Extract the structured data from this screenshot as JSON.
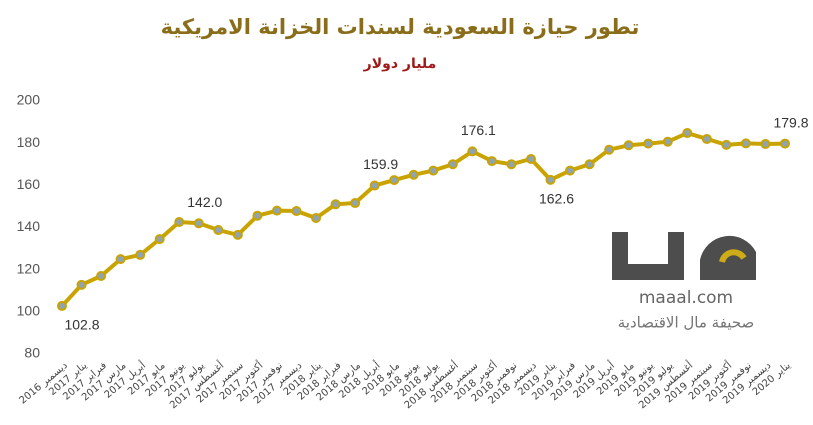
{
  "chart_data": {
    "type": "line",
    "title": "تطور حيازة السعودية لسندات الخزانة الامريكية",
    "subtitle": "مليار دولار",
    "categories": [
      "ديسمبر 2016",
      "يناير 2017",
      "فبراير 2017",
      "مارس 2017",
      "أبريل 2017",
      "مايو 2017",
      "يونيو 2017",
      "يوليو 2017",
      "أغسطس 2017",
      "سبتمبر 2017",
      "أكتوبر 2017",
      "نوفمبر 2017",
      "ديسمبر 2017",
      "يناير 2018",
      "فبراير 2018",
      "مارس 2018",
      "أبريل 2018",
      "مايو 2018",
      "يونيو 2018",
      "يوليو 2018",
      "أغسطس 2018",
      "سبتمبر 2018",
      "أكتوبر 2018",
      "نوفمبر 2018",
      "ديسمبر 2018",
      "يناير 2019",
      "فبراير 2019",
      "مارس 2019",
      "أبريل 2019",
      "مايو 2019",
      "يونيو 2019",
      "يوليو 2019",
      "أغسطس 2019",
      "سبتمبر 2019",
      "أكتوبر 2019",
      "نوفمبر 2019",
      "ديسمبر 2019",
      "يناير 2020"
    ],
    "values": [
      102.8,
      112.8,
      117,
      125,
      127,
      134.5,
      142.6,
      142.0,
      138.8,
      136.5,
      145.6,
      148,
      147.8,
      144.5,
      151,
      151.6,
      159.9,
      162.5,
      165,
      167,
      170,
      176.1,
      171.5,
      170,
      172.5,
      162.6,
      167,
      170,
      176.9,
      179,
      179.8,
      180.7,
      184.8,
      182,
      179.2,
      179.9,
      179.6,
      179.8
    ],
    "value_labels": [
      "102.8",
      null,
      null,
      null,
      null,
      null,
      null,
      "142.0",
      null,
      null,
      null,
      null,
      null,
      null,
      null,
      null,
      "159.9",
      null,
      null,
      null,
      null,
      "176.1",
      null,
      null,
      null,
      "162.6",
      null,
      null,
      null,
      null,
      null,
      null,
      null,
      null,
      null,
      null,
      null,
      "179.8"
    ],
    "color": "#c9a400",
    "marker_color": "#8fa3b3",
    "ylim": [
      80,
      200
    ],
    "yticks": [
      80,
      100,
      120,
      140,
      160,
      180,
      200
    ],
    "grid": false
  },
  "watermark": {
    "site": "maaal.com",
    "name": "صحيفة مال الاقتصادية"
  }
}
